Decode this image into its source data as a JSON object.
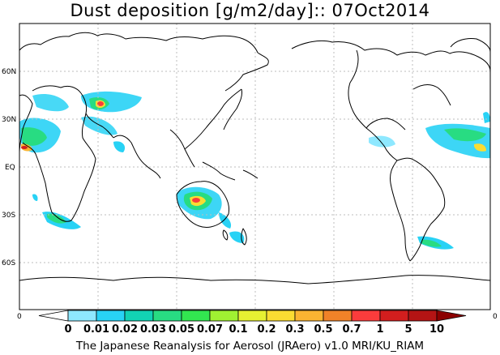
{
  "title": "Dust deposition [g/m2/day]:: 07Oct2014",
  "footer": "The Japanese Reanalysis for Aerosol (JRAero) v1.0 MRI/KU_RIAM",
  "latitude_labels": [
    "60N",
    "30N",
    "EQ",
    "30S",
    "60S"
  ],
  "longitude_axis_labels": [
    "0",
    "0"
  ],
  "colorbar": {
    "levels": [
      "0",
      "0.01",
      "0.02",
      "0.03",
      "0.05",
      "0.07",
      "0.1",
      "0.2",
      "0.3",
      "0.5",
      "0.7",
      "1",
      "5",
      "10"
    ],
    "colors": [
      "#ffffff",
      "#8ee8ff",
      "#28d2f5",
      "#12d2b4",
      "#28dc82",
      "#32e650",
      "#a0f032",
      "#e6f032",
      "#fadc32",
      "#fab432",
      "#f08228",
      "#fa3c3c",
      "#d21e1e",
      "#b41414",
      "#8c0000"
    ]
  },
  "colors": {
    "coastline": "#000000",
    "grid": "#bdbdbd",
    "frame": "#000000"
  }
}
